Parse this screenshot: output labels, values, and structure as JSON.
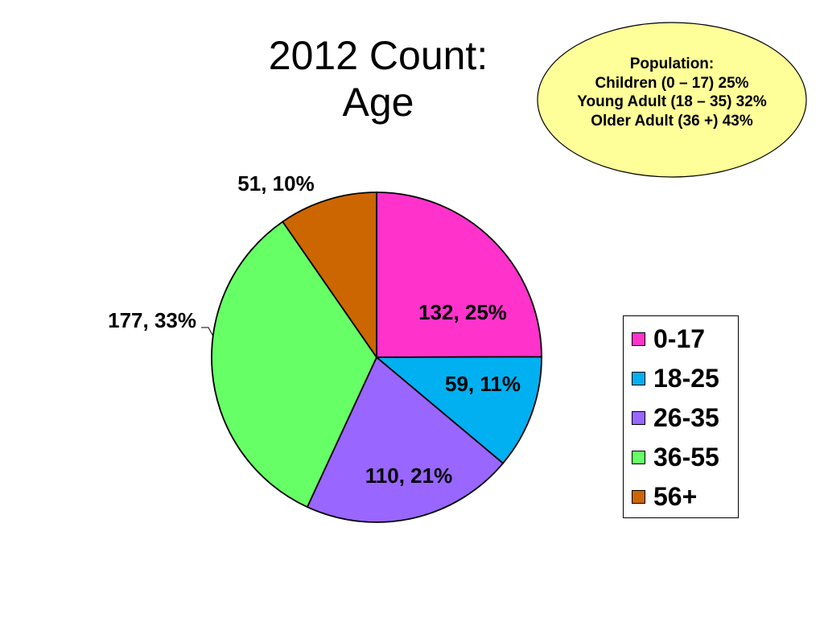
{
  "slide": {
    "title_line1": "2012 Count:",
    "title_line2": "Age"
  },
  "callout": {
    "heading": "Population:",
    "lines": [
      "Children (0 – 17) 25%",
      "Young Adult (18 – 35) 32%",
      "Older Adult (36 +) 43%"
    ],
    "fill": "#ffff99"
  },
  "chart_data": {
    "type": "pie",
    "title": "",
    "legend_position": "right",
    "slices": [
      {
        "name": "0-17",
        "value": 132,
        "percent": 25,
        "label": "132, 25%",
        "color": "#ff33cc"
      },
      {
        "name": "18-25",
        "value": 59,
        "percent": 11,
        "label": "59, 11%",
        "color": "#00b0f0"
      },
      {
        "name": "26-35",
        "value": 110,
        "percent": 21,
        "label": "110, 21%",
        "color": "#9966ff"
      },
      {
        "name": "36-55",
        "value": 177,
        "percent": 33,
        "label": "177, 33%",
        "color": "#66ff66"
      },
      {
        "name": "56+",
        "value": 51,
        "percent": 10,
        "label": "51, 10%",
        "color": "#cc6600"
      }
    ]
  }
}
